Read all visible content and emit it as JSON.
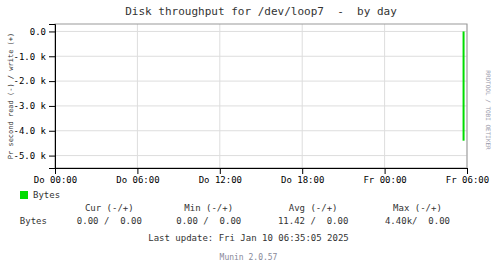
{
  "chart_data": {
    "type": "stem",
    "title": "Disk throughput for /dev/loop7  -  by day",
    "ylabel": "Pr second read (-) / write (+)",
    "x": [
      29.75
    ],
    "series": [
      {
        "name": "Bytes",
        "color": "#00dd00",
        "values": [
          -4400
        ]
      }
    ],
    "xlim": [
      0,
      30
    ],
    "xticks": [
      {
        "value": 0,
        "label": "Do 00:00"
      },
      {
        "value": 6,
        "label": "Do 06:00"
      },
      {
        "value": 12,
        "label": "Do 12:00"
      },
      {
        "value": 18,
        "label": "Do 18:00"
      },
      {
        "value": 24,
        "label": "Fr 00:00"
      },
      {
        "value": 30,
        "label": "Fr 06:00"
      }
    ],
    "ylim": [
      -5500,
      300
    ],
    "yticks": [
      {
        "value": 0,
        "label": "0.0"
      },
      {
        "value": -1000,
        "label": "-1.0 k"
      },
      {
        "value": -2000,
        "label": "-2.0 k"
      },
      {
        "value": -3000,
        "label": "-3.0 k"
      },
      {
        "value": -4000,
        "label": "-4.0 k"
      },
      {
        "value": -5000,
        "label": "-5.0 k"
      }
    ],
    "grid": true,
    "legend": "bottom",
    "annotations": [
      "RRDTOOL / TOBI OETIKER",
      "Cur (-/+)",
      "Min (-/+)",
      "Avg (-/+)",
      "Max (-/+)",
      "0.00 /  0.00",
      "0.00 /  0.00",
      "11.42 /  0.00",
      "4.40k/  0.00",
      "Last update: Fri Jan 10 06:35:05 2025",
      "Munin 2.0.57"
    ]
  }
}
